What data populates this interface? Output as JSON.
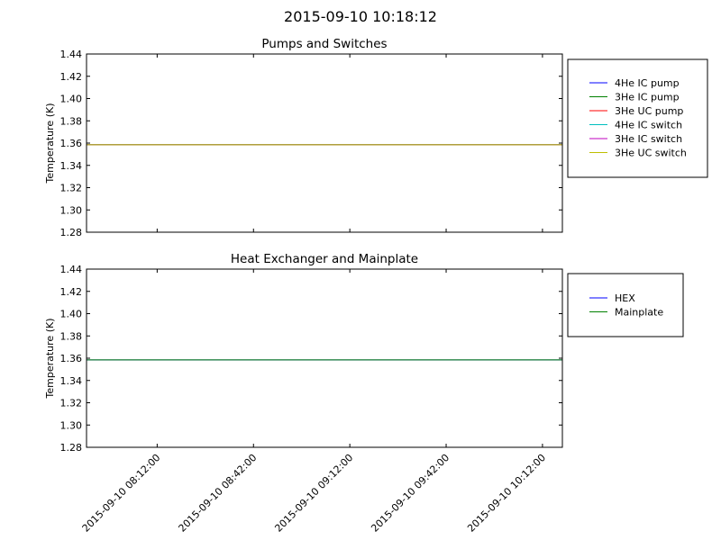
{
  "figure_title": "2015-09-10 10:18:12",
  "chart_data": [
    {
      "type": "line",
      "title": "Pumps and Switches",
      "xlabel": "",
      "ylabel": "Temperature (K)",
      "ylim": [
        1.28,
        1.44
      ],
      "yticks": [
        "1.28",
        "1.30",
        "1.32",
        "1.34",
        "1.36",
        "1.38",
        "1.40",
        "1.42",
        "1.44"
      ],
      "x_range": [
        "2015-09-10 07:50:00",
        "2015-09-10 10:18:12"
      ],
      "x": [
        "2015-09-10 07:50:00",
        "2015-09-10 10:18:12"
      ],
      "xticks": [],
      "grid": false,
      "legend": "outside-right",
      "series": [
        {
          "name": "4He IC pump",
          "color": "#0000ff",
          "values": [
            1.3585,
            1.3585
          ]
        },
        {
          "name": "3He IC pump",
          "color": "#008000",
          "values": [
            1.3585,
            1.3585
          ]
        },
        {
          "name": "3He UC pump",
          "color": "#ff0000",
          "values": [
            1.3585,
            1.3585
          ]
        },
        {
          "name": "4He IC switch",
          "color": "#00bfbf",
          "values": [
            1.3585,
            1.3585
          ]
        },
        {
          "name": "3He IC switch",
          "color": "#bf00bf",
          "values": [
            1.3585,
            1.3585
          ]
        },
        {
          "name": "3He UC switch",
          "color": "#bfbf00",
          "values": [
            1.3585,
            1.3585
          ]
        }
      ]
    },
    {
      "type": "line",
      "title": "Heat Exchanger and Mainplate",
      "xlabel": "",
      "ylabel": "Temperature (K)",
      "ylim": [
        1.28,
        1.44
      ],
      "yticks": [
        "1.28",
        "1.30",
        "1.32",
        "1.34",
        "1.36",
        "1.38",
        "1.40",
        "1.42",
        "1.44"
      ],
      "x_range": [
        "2015-09-10 07:50:00",
        "2015-09-10 10:18:12"
      ],
      "x": [
        "2015-09-10 07:50:00",
        "2015-09-10 10:18:12"
      ],
      "xticks": [
        "2015-09-10 08:12:00",
        "2015-09-10 08:42:00",
        "2015-09-10 09:12:00",
        "2015-09-10 09:42:00",
        "2015-09-10 10:12:00"
      ],
      "grid": false,
      "legend": "outside-right",
      "series": [
        {
          "name": "HEX",
          "color": "#0000ff",
          "values": [
            1.3585,
            1.3585
          ]
        },
        {
          "name": "Mainplate",
          "color": "#008000",
          "values": [
            1.3585,
            1.3585
          ]
        }
      ]
    }
  ]
}
